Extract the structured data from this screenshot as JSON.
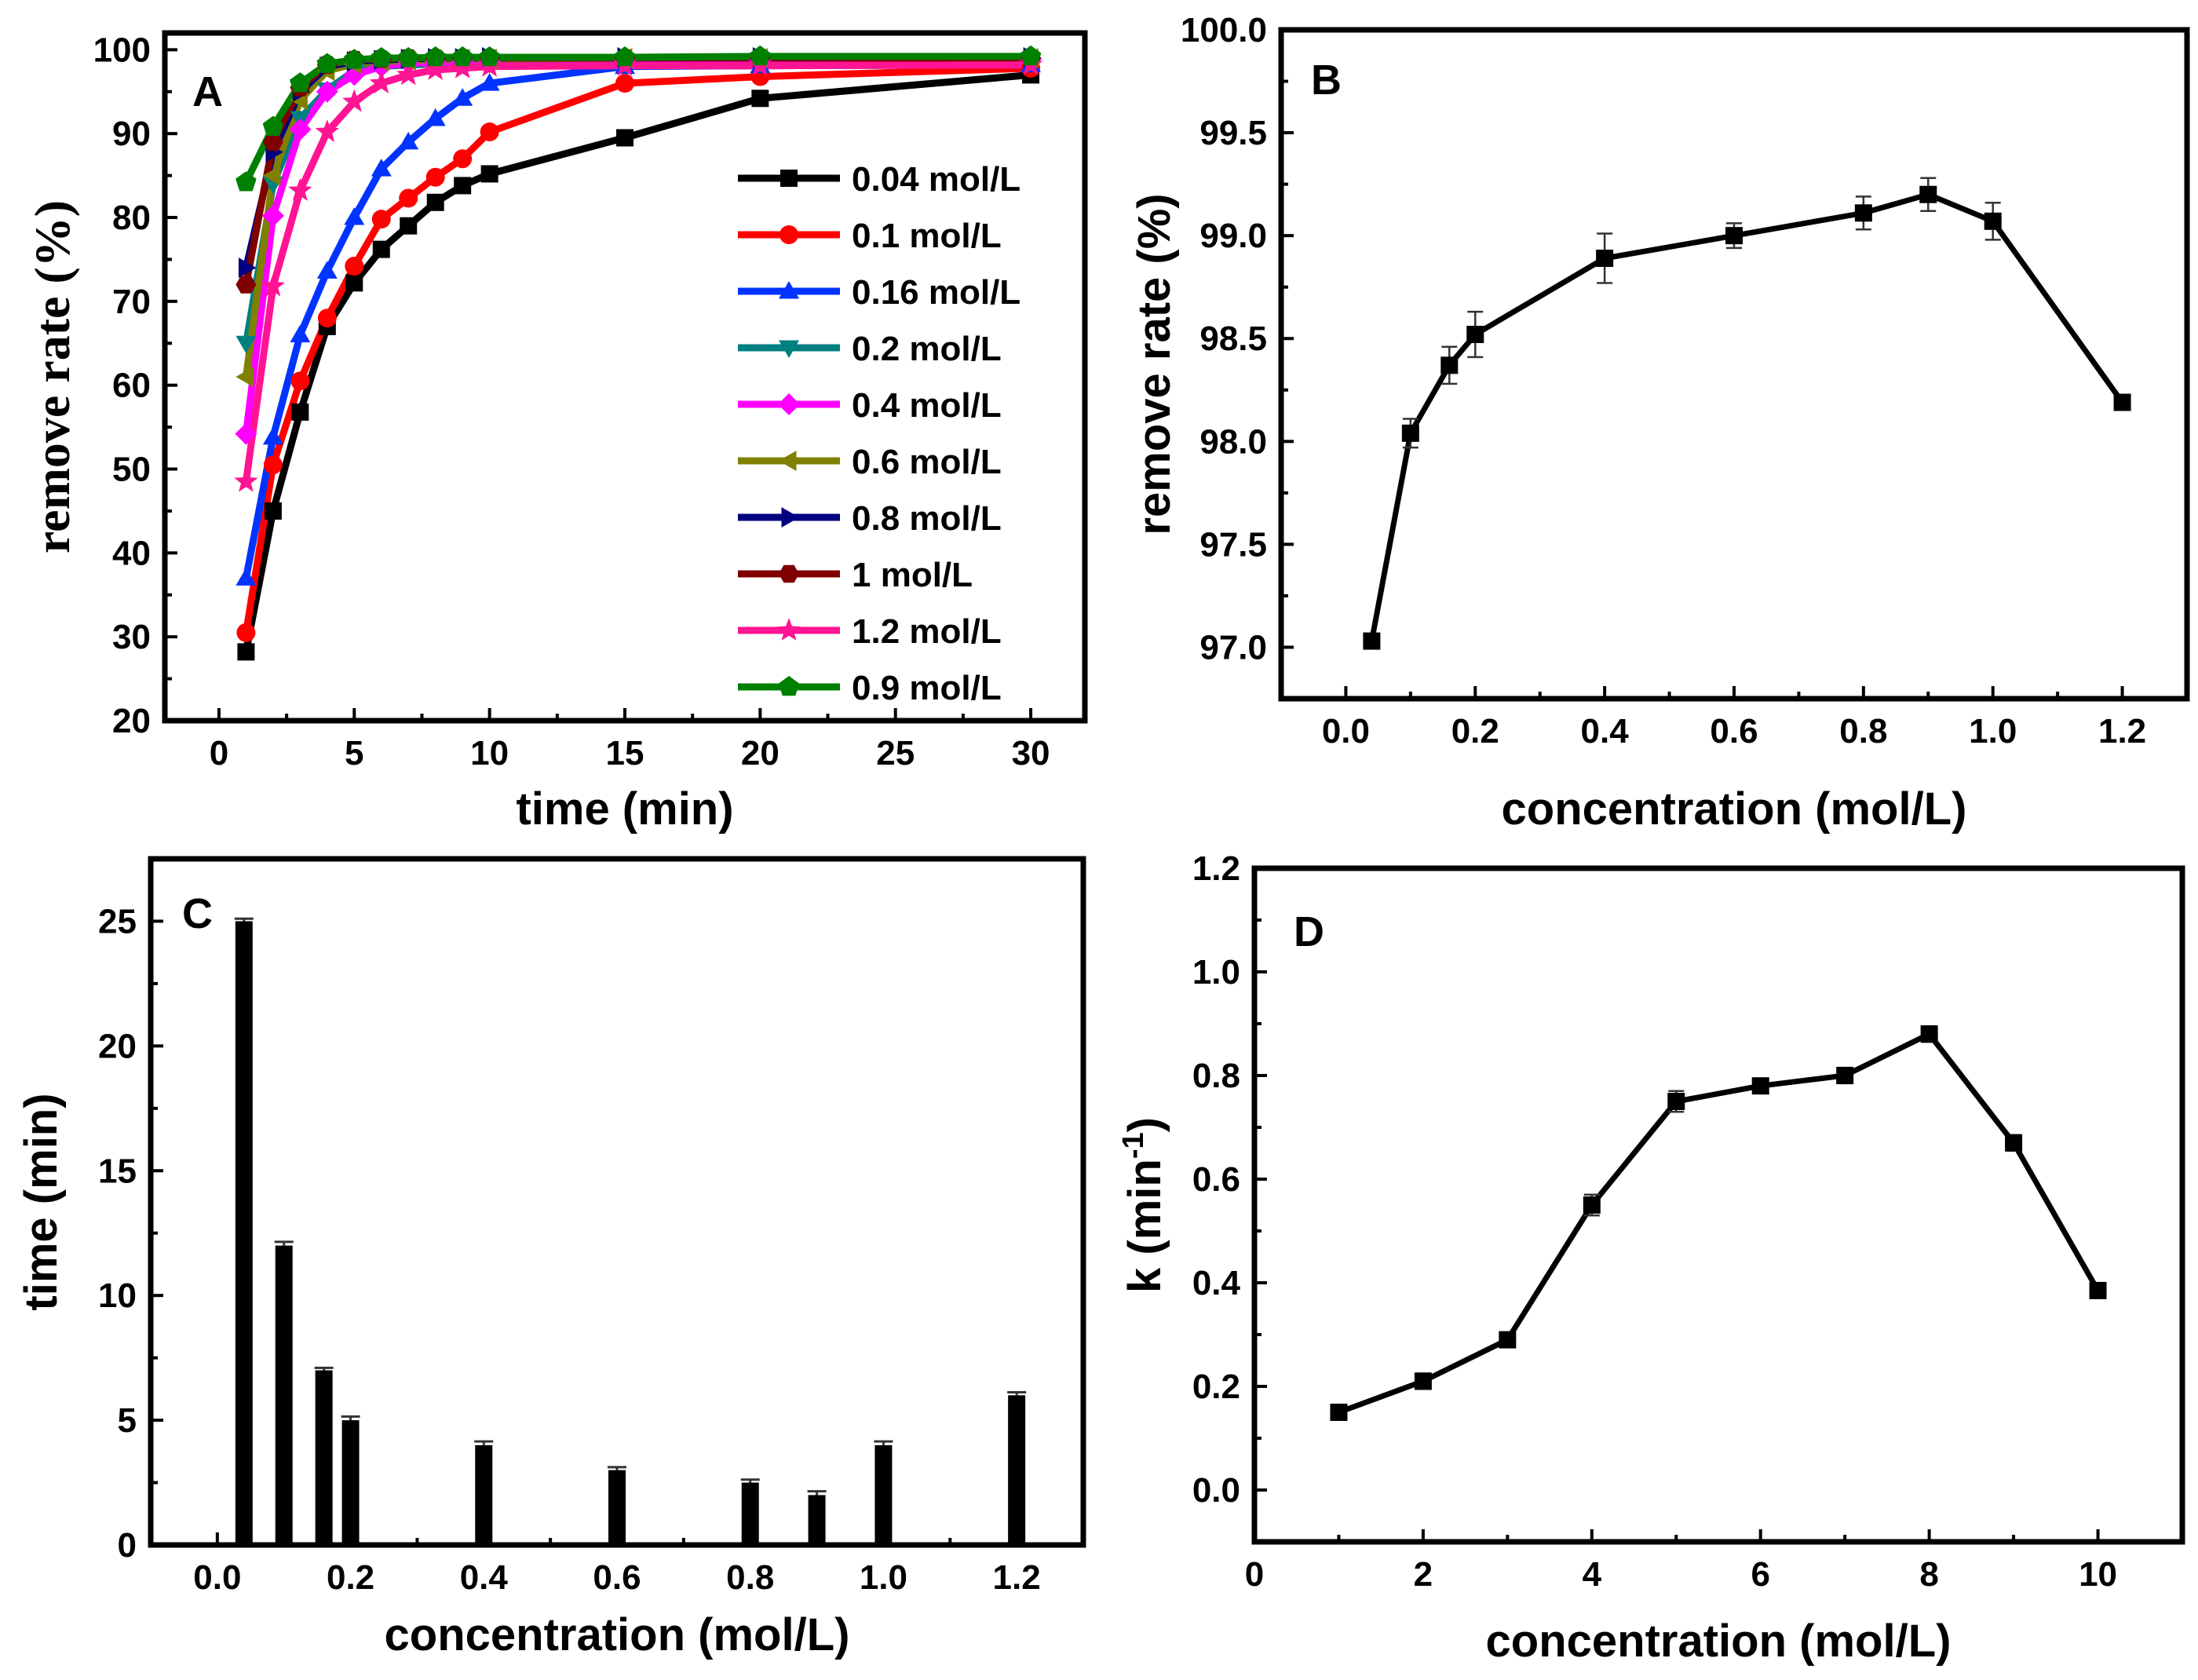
{
  "chart_data": [
    {
      "panel": "A",
      "type": "line",
      "xlabel": "time (min)",
      "ylabel": "remove rate (%)",
      "xlim": [
        -2,
        32
      ],
      "ylim": [
        20,
        102
      ],
      "xticks": [
        0,
        5,
        10,
        15,
        20,
        25,
        30
      ],
      "yticks": [
        20,
        30,
        40,
        50,
        60,
        70,
        80,
        90,
        100
      ],
      "legend_position": "right",
      "x": [
        1,
        2,
        3,
        4,
        5,
        6,
        7,
        8,
        9,
        10,
        15,
        20,
        30
      ],
      "series": [
        {
          "name": "0.04 mol/L",
          "color": "#000000",
          "marker": "square",
          "values": [
            28.2,
            45.0,
            56.8,
            67.0,
            72.2,
            76.2,
            79.0,
            81.8,
            83.8,
            85.2,
            89.5,
            94.2,
            97.0
          ]
        },
        {
          "name": "0.1 mol/L",
          "color": "#ff0000",
          "marker": "circle",
          "values": [
            30.5,
            50.5,
            60.5,
            68.0,
            74.2,
            79.8,
            82.3,
            84.8,
            87.0,
            90.2,
            96.0,
            96.8,
            97.8
          ]
        },
        {
          "name": "0.16 mol/L",
          "color": "#0033ff",
          "marker": "triangle-up",
          "values": [
            37.0,
            53.8,
            66.0,
            73.6,
            80.0,
            85.8,
            89.0,
            91.8,
            94.2,
            96.0,
            98.0,
            98.1,
            98.2
          ]
        },
        {
          "name": "0.2 mol/L",
          "color": "#008080",
          "marker": "triangle-down",
          "values": [
            65.0,
            84.0,
            91.8,
            95.2,
            97.5,
            98.0,
            98.2,
            98.3,
            98.3,
            98.4,
            98.5,
            98.5,
            98.6
          ]
        },
        {
          "name": "0.4 mol/L",
          "color": "#ff00ff",
          "marker": "diamond",
          "values": [
            54.2,
            80.2,
            90.5,
            95.0,
            97.0,
            98.0,
            98.4,
            98.5,
            98.6,
            98.6,
            98.7,
            98.8,
            98.9
          ]
        },
        {
          "name": "0.6 mol/L",
          "color": "#808000",
          "marker": "triangle-left",
          "values": [
            61.0,
            85.0,
            94.0,
            97.5,
            98.3,
            98.6,
            98.7,
            98.8,
            98.9,
            98.9,
            99.0,
            99.0,
            99.0
          ]
        },
        {
          "name": "0.8 mol/L",
          "color": "#000080",
          "marker": "triangle-right",
          "values": [
            74.0,
            87.8,
            95.0,
            98.0,
            98.6,
            98.8,
            98.9,
            99.0,
            99.0,
            99.1,
            99.1,
            99.1,
            99.1
          ]
        },
        {
          "name": "1 mol/L",
          "color": "#800000",
          "marker": "hexagon",
          "values": [
            72.0,
            89.0,
            95.5,
            98.2,
            98.8,
            98.9,
            99.0,
            99.0,
            99.0,
            99.0,
            99.0,
            99.0,
            99.0
          ]
        },
        {
          "name": "1.2 mol/L",
          "color": "#ff1493",
          "marker": "star",
          "values": [
            48.5,
            71.8,
            83.2,
            90.2,
            93.8,
            96.0,
            97.0,
            97.6,
            97.8,
            98.0,
            98.1,
            98.1,
            98.2
          ]
        },
        {
          "name": "0.9 mol/L",
          "color": "#008000",
          "marker": "pentagon",
          "values": [
            84.2,
            90.8,
            96.0,
            98.3,
            98.8,
            99.0,
            99.0,
            99.1,
            99.1,
            99.1,
            99.1,
            99.2,
            99.2
          ]
        }
      ]
    },
    {
      "panel": "B",
      "type": "line",
      "xlabel": "concentration (mol/L)",
      "ylabel": "remove rate (%)",
      "xlim": [
        -0.1,
        1.3
      ],
      "ylim": [
        96.75,
        100.0
      ],
      "xticks": [
        "0.0",
        "0.2",
        "0.4",
        "0.6",
        "0.8",
        "1.0",
        "1.2"
      ],
      "yticks": [
        "97.0",
        "97.5",
        "98.0",
        "98.5",
        "99.0",
        "99.5",
        "100.0"
      ],
      "x": [
        0.04,
        0.1,
        0.16,
        0.2,
        0.4,
        0.6,
        0.8,
        0.9,
        1.0,
        1.2
      ],
      "values": [
        97.03,
        98.04,
        98.37,
        98.52,
        98.89,
        99.0,
        99.11,
        99.2,
        99.07,
        98.19
      ],
      "errors": [
        0.0,
        0.07,
        0.09,
        0.11,
        0.12,
        0.06,
        0.08,
        0.08,
        0.09,
        0.0
      ]
    },
    {
      "panel": "C",
      "type": "bar",
      "xlabel": "concentration (mol/L)",
      "ylabel": "time (min)",
      "xlim": [
        -0.1,
        1.3
      ],
      "ylim": [
        0,
        27.5
      ],
      "xticks": [
        "0.0",
        "0.2",
        "0.4",
        "0.6",
        "0.8",
        "1.0",
        "1.2"
      ],
      "yticks": [
        "0",
        "5",
        "10",
        "15",
        "20",
        "25"
      ],
      "x": [
        0.04,
        0.1,
        0.16,
        0.2,
        0.4,
        0.6,
        0.8,
        0.9,
        1.0,
        1.2
      ],
      "values": [
        25,
        12,
        7,
        5,
        4,
        3,
        2.5,
        2,
        4,
        6
      ],
      "errors": [
        0.1,
        0.15,
        0.1,
        0.15,
        0.15,
        0.12,
        0.12,
        0.15,
        0.15,
        0.12
      ]
    },
    {
      "panel": "D",
      "type": "line",
      "xlabel": "concentration (mol/L)",
      "ylabel": "k (min-1)",
      "ylabel_main": "k (min",
      "ylabel_sup": "-1",
      "ylabel_close": ")",
      "xlim": [
        0,
        11
      ],
      "ylim": [
        -0.1,
        1.2
      ],
      "xticks": [
        "0",
        "2",
        "4",
        "6",
        "8",
        "10"
      ],
      "yticks": [
        "0.0",
        "0.2",
        "0.4",
        "0.6",
        "0.8",
        "1.0",
        "1.2"
      ],
      "x": [
        1,
        2,
        3,
        4,
        5,
        6,
        7,
        8,
        9,
        10
      ],
      "values": [
        0.15,
        0.21,
        0.29,
        0.55,
        0.75,
        0.78,
        0.8,
        0.88,
        0.67,
        0.385
      ],
      "errors": [
        0.0,
        0.015,
        0.0,
        0.02,
        0.02,
        0.012,
        0.015,
        0.015,
        0.015,
        0.0
      ]
    }
  ]
}
